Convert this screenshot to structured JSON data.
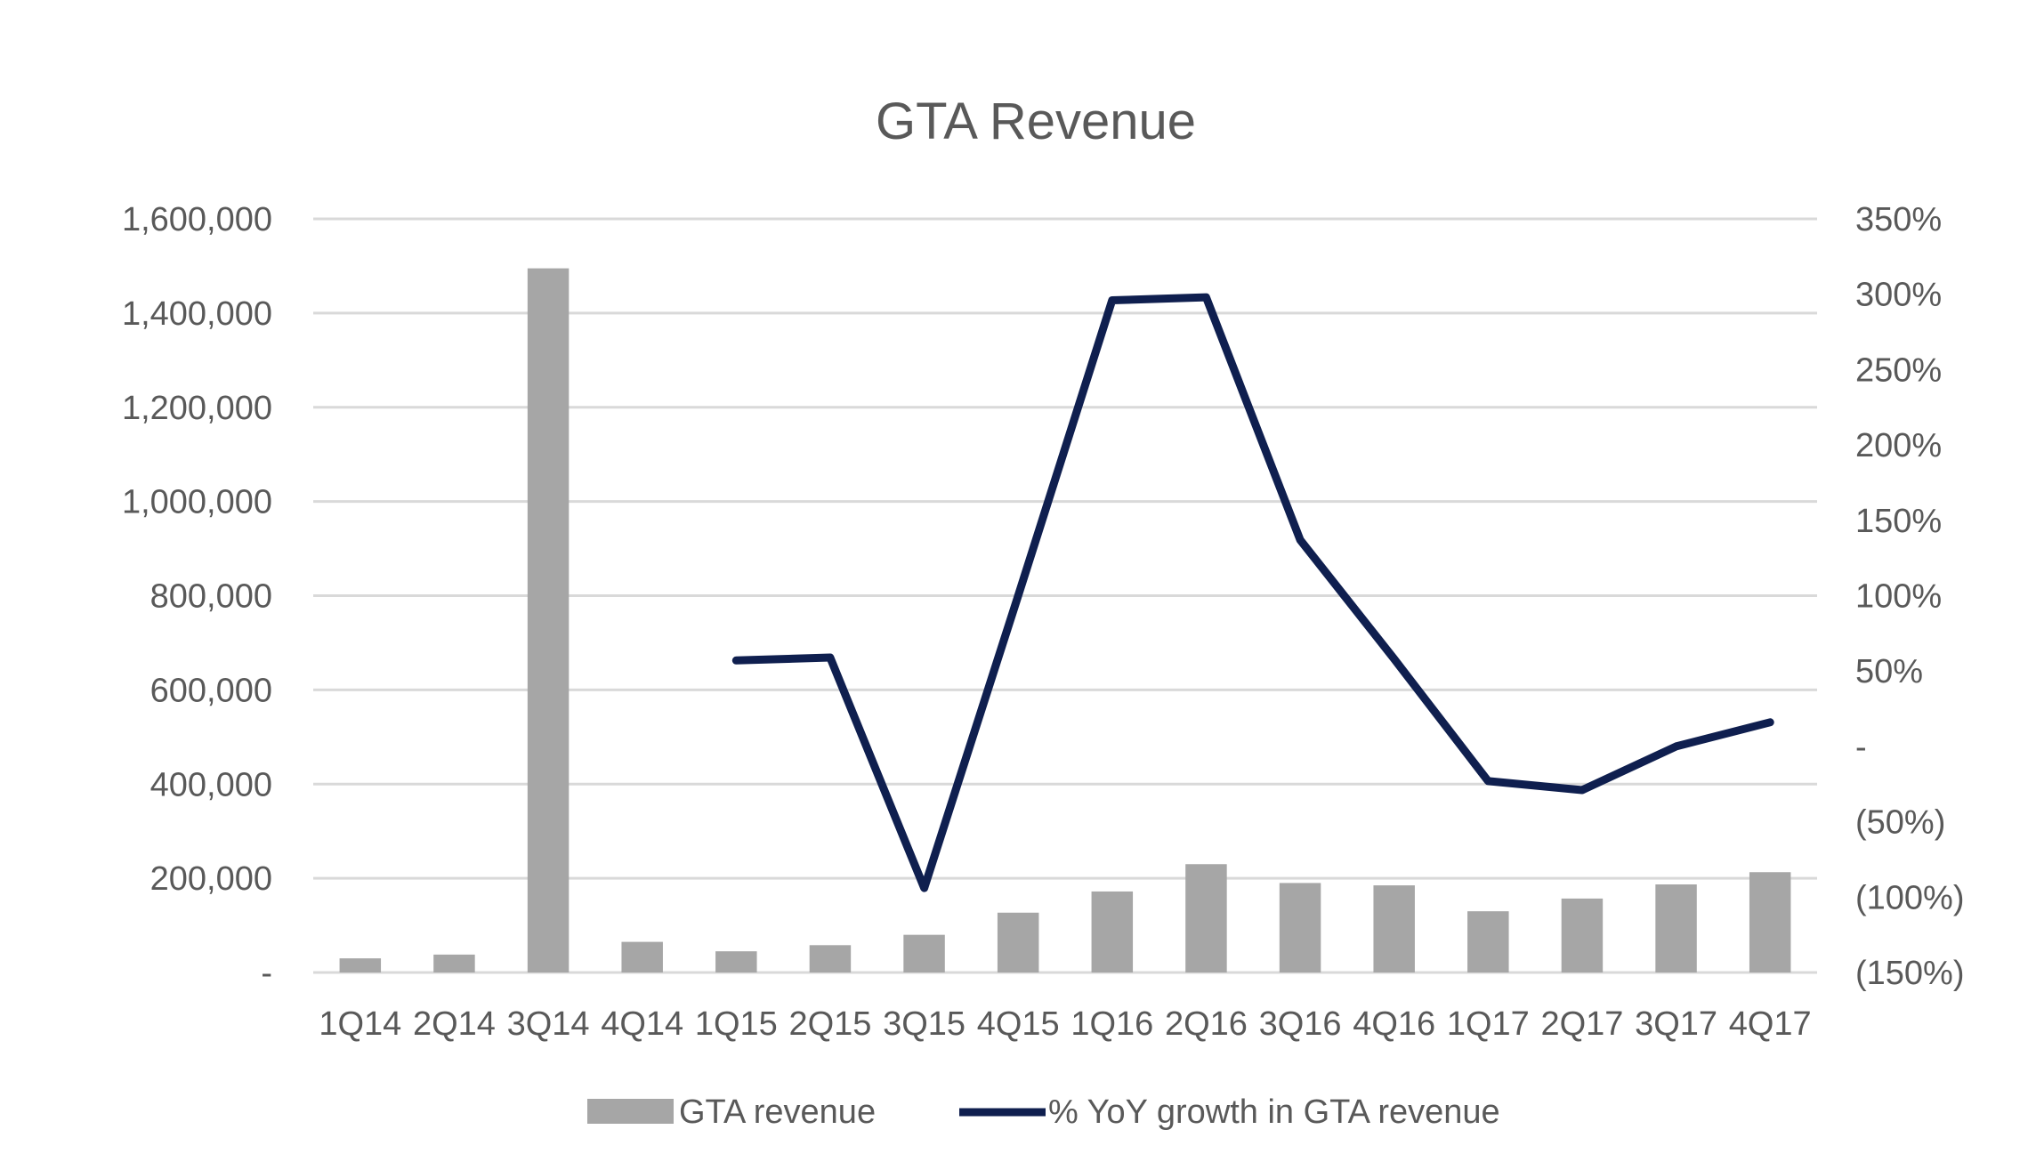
{
  "chart_data": {
    "type": "bar",
    "title": "GTA Revenue",
    "categories": [
      "1Q14",
      "2Q14",
      "3Q14",
      "4Q14",
      "1Q15",
      "2Q15",
      "3Q15",
      "4Q15",
      "1Q16",
      "2Q16",
      "3Q16",
      "4Q16",
      "1Q17",
      "2Q17",
      "3Q17",
      "4Q17"
    ],
    "series": [
      {
        "name": "GTA revenue",
        "type": "bar",
        "axis": "left",
        "color": "#a6a6a6",
        "values": [
          30000,
          38000,
          1495000,
          65000,
          45000,
          58000,
          80000,
          127000,
          172000,
          230000,
          190000,
          185000,
          130000,
          157000,
          187000,
          213000
        ]
      },
      {
        "name": "% YoY growth in GTA revenue",
        "type": "line",
        "axis": "right",
        "color": "#0f1f4f",
        "values": [
          null,
          null,
          null,
          null,
          57,
          59,
          -94,
          100,
          296,
          298,
          137,
          58,
          -23,
          -29,
          0,
          16
        ]
      }
    ],
    "y_left": {
      "ylim": [
        0,
        1600000
      ],
      "ticks": [
        0,
        200000,
        400000,
        600000,
        800000,
        1000000,
        1200000,
        1400000,
        1600000
      ],
      "tick_labels": [
        "-",
        "200,000",
        "400,000",
        "600,000",
        "800,000",
        "1,000,000",
        "1,200,000",
        "1,400,000",
        "1,600,000"
      ]
    },
    "y_right": {
      "ylim": [
        -150,
        350
      ],
      "ticks": [
        -150,
        -100,
        -50,
        0,
        50,
        100,
        150,
        200,
        250,
        300,
        350
      ],
      "tick_labels": [
        "(150%)",
        "(100%)",
        "(50%)",
        "-",
        "50%",
        "100%",
        "150%",
        "200%",
        "250%",
        "300%",
        "350%"
      ]
    },
    "grid": true,
    "legend": "bottom"
  }
}
